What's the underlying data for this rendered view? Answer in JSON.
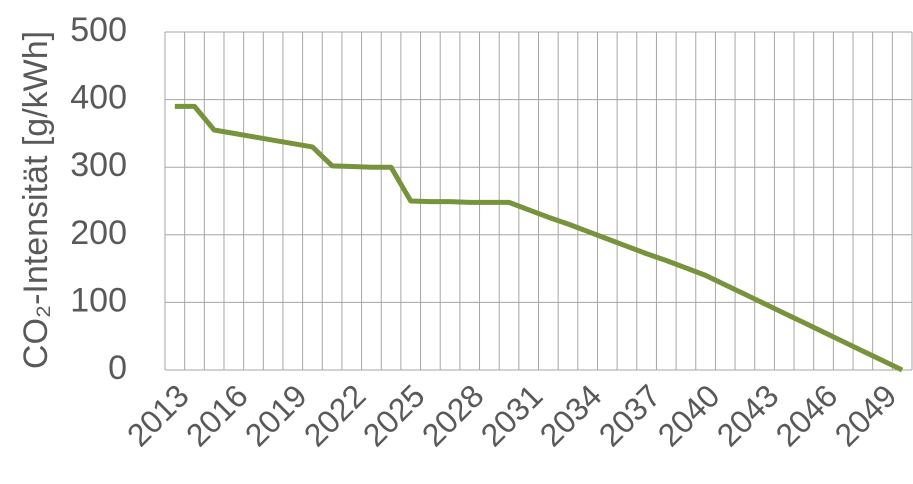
{
  "chart_data": {
    "type": "line",
    "ylabel": "CO₂-Intensität [g/kWh]",
    "categories": [
      2013,
      null,
      null,
      2016,
      null,
      null,
      2019,
      null,
      null,
      2022,
      null,
      null,
      2025,
      null,
      null,
      2028,
      null,
      null,
      2031,
      null,
      null,
      2034,
      null,
      null,
      2037,
      null,
      null,
      2040,
      null,
      null,
      2043,
      null,
      null,
      2046,
      null,
      null,
      2049,
      null
    ],
    "series": [
      {
        "name": "CO₂-Intensität",
        "color": "#77933c",
        "values": [
          390,
          390,
          355,
          350,
          345,
          340,
          335,
          330,
          302,
          301,
          300,
          300,
          250,
          249,
          249,
          248,
          248,
          248,
          237,
          226,
          216,
          205,
          194,
          183,
          172,
          162,
          151,
          140,
          126,
          112,
          98,
          84,
          70,
          56,
          42,
          28,
          14,
          0
        ]
      }
    ],
    "ylim": [
      0,
      500
    ],
    "yticks": [
      0,
      100,
      200,
      300,
      400,
      500
    ],
    "grid": true
  }
}
